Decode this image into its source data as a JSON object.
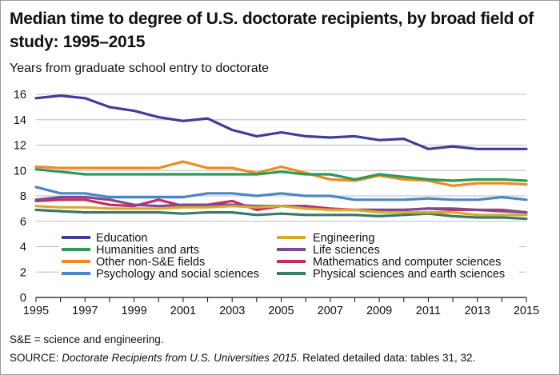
{
  "title": "Median time to degree of U.S. doctorate recipients, by broad field of study: 1995–2015",
  "subtitle": "Years from graduate school entry to doctorate",
  "footnote": "S&E = science and engineering.",
  "source": {
    "prefix": "SOURCE: ",
    "title": "Doctorate Recipients from U.S. Universities 2015",
    "suffix": ". Related detailed data: tables 31, 32."
  },
  "chart_data": {
    "type": "line",
    "title": "Median time to degree of U.S. doctorate recipients, by broad field of study: 1995–2015",
    "xlabel": "",
    "ylabel": "Years from graduate school entry to doctorate",
    "x": [
      1995,
      1996,
      1997,
      1998,
      1999,
      2000,
      2001,
      2002,
      2003,
      2004,
      2005,
      2006,
      2007,
      2008,
      2009,
      2010,
      2011,
      2012,
      2013,
      2014,
      2015
    ],
    "xticks": [
      1995,
      1997,
      1999,
      2001,
      2003,
      2005,
      2007,
      2009,
      2011,
      2013,
      2015
    ],
    "yticks": [
      0,
      2,
      4,
      6,
      8,
      10,
      12,
      14,
      16
    ],
    "xlim": [
      1995,
      2015
    ],
    "ylim": [
      0,
      16
    ],
    "grid": true,
    "legend_position": "lower-middle, two columns",
    "series": [
      {
        "name": "Education",
        "color": "#3d3f98",
        "values": [
          15.7,
          15.9,
          15.7,
          15.0,
          14.7,
          14.2,
          13.9,
          14.1,
          13.2,
          12.7,
          13.0,
          12.7,
          12.6,
          12.7,
          12.4,
          12.5,
          11.7,
          11.9,
          11.7,
          11.7,
          11.7
        ]
      },
      {
        "name": "Humanities and arts",
        "color": "#2e9a58",
        "values": [
          10.1,
          9.9,
          9.7,
          9.7,
          9.7,
          9.7,
          9.7,
          9.7,
          9.7,
          9.7,
          9.9,
          9.7,
          9.7,
          9.3,
          9.7,
          9.5,
          9.3,
          9.2,
          9.3,
          9.3,
          9.2
        ]
      },
      {
        "name": "Other non-S&E fields",
        "color": "#f08a21",
        "values": [
          10.3,
          10.2,
          10.2,
          10.2,
          10.2,
          10.2,
          10.7,
          10.2,
          10.2,
          9.8,
          10.3,
          9.8,
          9.3,
          9.2,
          9.6,
          9.3,
          9.2,
          8.8,
          9.0,
          9.0,
          8.9
        ]
      },
      {
        "name": "Psychology and social sciences",
        "color": "#4c86c6",
        "values": [
          8.7,
          8.2,
          8.2,
          7.9,
          7.9,
          7.9,
          7.9,
          8.2,
          8.2,
          8.0,
          8.2,
          8.0,
          8.0,
          7.7,
          7.7,
          7.7,
          7.8,
          7.7,
          7.7,
          7.9,
          7.7
        ]
      },
      {
        "name": "Engineering",
        "color": "#d6ab2a",
        "values": [
          7.2,
          7.1,
          7.1,
          7.0,
          7.0,
          7.0,
          7.1,
          7.1,
          7.2,
          7.1,
          7.2,
          7.0,
          6.9,
          6.9,
          6.7,
          6.7,
          6.7,
          6.7,
          6.5,
          6.5,
          6.5
        ]
      },
      {
        "name": "Life sciences",
        "color": "#7e4a93",
        "values": [
          7.7,
          7.9,
          7.9,
          7.7,
          7.3,
          7.2,
          7.3,
          7.3,
          7.3,
          7.2,
          7.2,
          7.1,
          6.9,
          6.9,
          6.9,
          6.9,
          7.0,
          7.0,
          6.9,
          6.8,
          6.7
        ]
      },
      {
        "name": "Mathematics and computer sciences",
        "color": "#cc2b5e",
        "values": [
          7.6,
          7.7,
          7.7,
          7.3,
          7.2,
          7.7,
          7.2,
          7.3,
          7.6,
          6.9,
          7.2,
          7.2,
          7.0,
          6.9,
          6.9,
          6.9,
          7.0,
          6.9,
          6.9,
          6.9,
          6.7
        ]
      },
      {
        "name": "Physical sciences and earth sciences",
        "color": "#3a7a68",
        "values": [
          6.9,
          6.8,
          6.7,
          6.7,
          6.7,
          6.7,
          6.6,
          6.7,
          6.7,
          6.5,
          6.6,
          6.5,
          6.5,
          6.5,
          6.4,
          6.5,
          6.6,
          6.4,
          6.3,
          6.3,
          6.2
        ]
      }
    ]
  }
}
